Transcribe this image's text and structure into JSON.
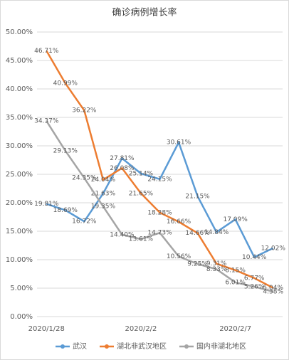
{
  "chart_data": {
    "type": "line",
    "title": "确诊病例增长率",
    "categories": [
      "2020/1/28",
      null,
      null,
      null,
      null,
      "2020/2/2",
      null,
      null,
      null,
      null,
      "2020/2/7",
      null,
      null
    ],
    "ylim": [
      0,
      50
    ],
    "yticks": [
      {
        "value": 0,
        "label": "0.00%"
      },
      {
        "value": 5,
        "label": "5.00%"
      },
      {
        "value": 10,
        "label": "10.00%"
      },
      {
        "value": 15,
        "label": "15.00%"
      },
      {
        "value": 20,
        "label": "20.00%"
      },
      {
        "value": 25,
        "label": "25.00%"
      },
      {
        "value": 30,
        "label": "30.00%"
      },
      {
        "value": 35,
        "label": "35.00%"
      },
      {
        "value": 40,
        "label": "40.00%"
      },
      {
        "value": 45,
        "label": "45.00%"
      },
      {
        "value": 50,
        "label": "50.00%"
      }
    ],
    "grid": true,
    "legend": "bottom",
    "series": [
      {
        "name": "武汉",
        "color": "#5b9bd5",
        "values": [
          19.81,
          18.69,
          16.72,
          21.63,
          27.81,
          25.14,
          24.15,
          30.61,
          21.15,
          14.84,
          17.09,
          10.44,
          12.02
        ],
        "value_labels": [
          "19.81%",
          "18.69%",
          "16.72%",
          "21.63%",
          "27.81%",
          "25.14%",
          "24.15%",
          "30.61%",
          "21.15%",
          "14.84%",
          "17.09%",
          "10.44%",
          "12.02%"
        ]
      },
      {
        "name": "湖北非武汉地区",
        "color": "#ed7d31",
        "values": [
          46.71,
          40.99,
          36.22,
          24.04,
          26.08,
          21.65,
          18.28,
          16.66,
          14.66,
          9.31,
          8.15,
          6.77,
          5.04
        ],
        "value_labels": [
          "46.71%",
          "40.99%",
          "36.22%",
          "24.04%",
          "26.08%",
          "21.65%",
          "18.28%",
          "16.66%",
          "14.66%",
          "9.31%",
          "8.15%",
          "6.77%",
          "5.04%"
        ]
      },
      {
        "name": "国内非湖北地区",
        "color": "#a5a5a5",
        "values": [
          34.37,
          29.13,
          24.35,
          19.35,
          14.4,
          13.61,
          14.73,
          10.56,
          9.25,
          8.33,
          6.01,
          5.26,
          4.38
        ],
        "value_labels": [
          "34.37%",
          "29.13%",
          "24.35%",
          "19.35%",
          "14.40%",
          "13.61%",
          "14.73%",
          "10.56%",
          "9.25%",
          "8.33%",
          "6.01%",
          "5.26%",
          "4.38%"
        ]
      }
    ]
  }
}
